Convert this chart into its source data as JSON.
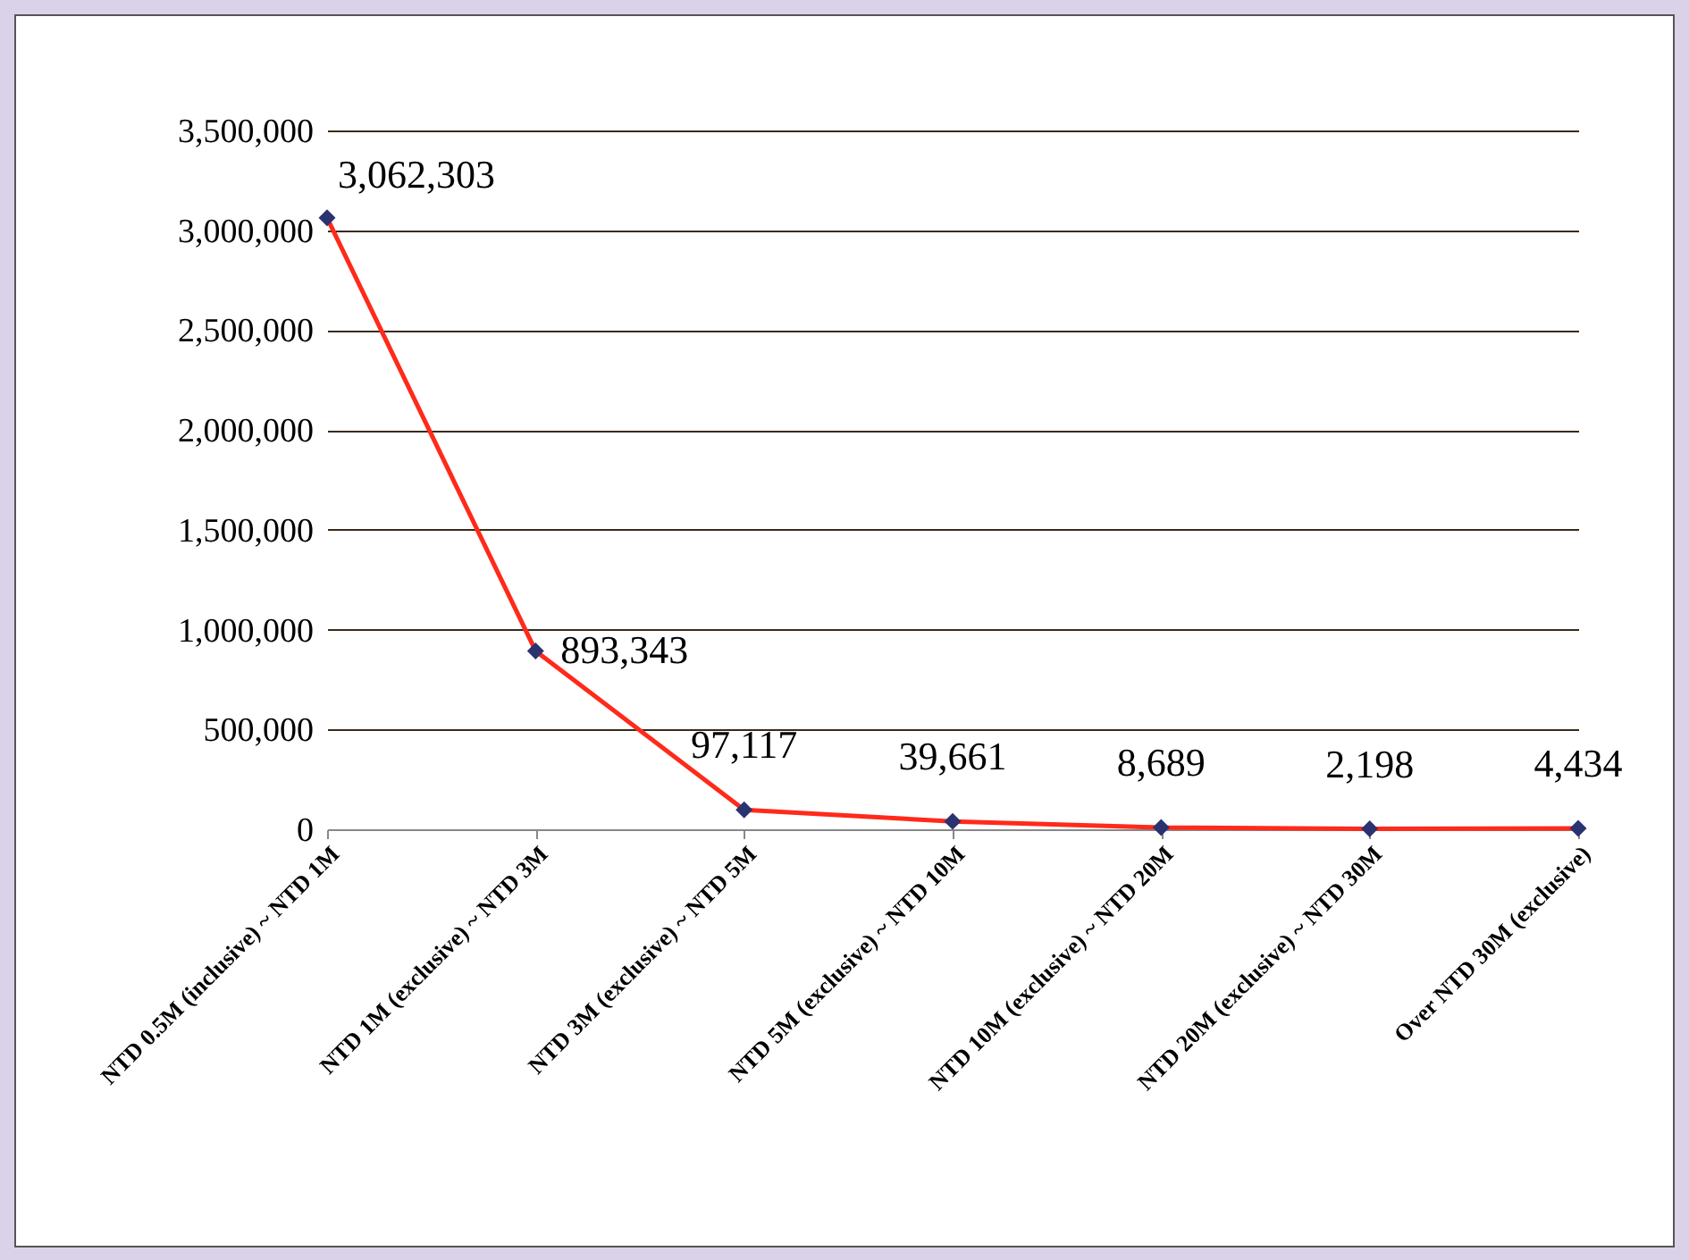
{
  "chart_data": {
    "type": "line",
    "categories": [
      "NTD 0.5M (inclusive) ~ NTD 1M",
      "NTD 1M (exclusive) ~ NTD 3M",
      "NTD 3M (exclusive) ~ NTD 5M",
      "NTD 5M (exclusive) ~ NTD 10M",
      "NTD 10M (exclusive) ~ NTD 20M",
      "NTD 20M (exclusive) ~ NTD 30M",
      "Over NTD 30M (exclusive)"
    ],
    "series": [
      {
        "color": "#ff2a1a",
        "values": [
          3062303,
          893343,
          97117,
          39661,
          8689,
          2198,
          4434
        ],
        "value_labels": [
          "3,062,303",
          "893,343",
          "97,117",
          "39,661",
          "8,689",
          "2,198",
          "4,434"
        ]
      }
    ],
    "ylim": [
      0,
      3500000
    ],
    "yticks": [
      {
        "value": 0,
        "label": "0"
      },
      {
        "value": 500000,
        "label": "500,000"
      },
      {
        "value": 1000000,
        "label": "1,000,000"
      },
      {
        "value": 1500000,
        "label": "1,500,000"
      },
      {
        "value": 2000000,
        "label": "2,000,000"
      },
      {
        "value": 2500000,
        "label": "2,500,000"
      },
      {
        "value": 3000000,
        "label": "3,000,000"
      },
      {
        "value": 3500000,
        "label": "3,500,000"
      }
    ],
    "grid": "y",
    "marker": "diamond",
    "line_style": "solid",
    "legend": false
  }
}
